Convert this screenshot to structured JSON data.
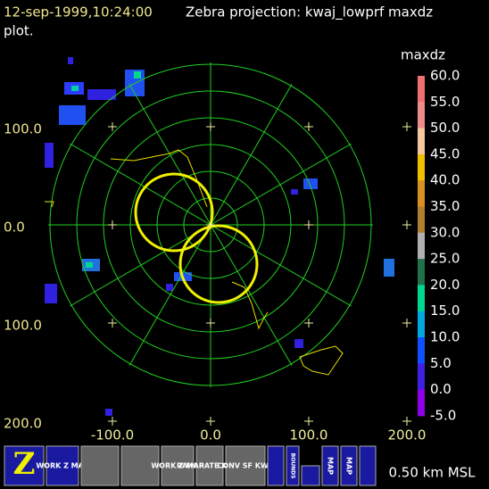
{
  "header": {
    "timestamp": "12-sep-1999,10:24:00",
    "title": "Zebra projection: kwaj_lowprf maxdz",
    "title_wrap": "plot."
  },
  "plot": {
    "x_labels": [
      "-100.0",
      "0.0",
      "100.0",
      "200.0"
    ],
    "y_labels": [
      "100.0",
      "0.0",
      "100.0",
      "200.0"
    ]
  },
  "colorbar": {
    "title": "maxdz",
    "labels": [
      "60.0",
      "55.0",
      "50.0",
      "45.0",
      "40.0",
      "35.0",
      "30.0",
      "25.0",
      "20.0",
      "15.0",
      "10.0",
      "5.0",
      "0.0",
      "-5.0"
    ]
  },
  "toolbar": {
    "buttons": [
      "WORK Z MAP",
      "RAIN RATE KWAJ",
      "WORK Z MAP",
      "CONV SF KWA",
      "BOUNDS",
      "MAP",
      "MAP"
    ],
    "status": "0.50 km MSL"
  }
}
